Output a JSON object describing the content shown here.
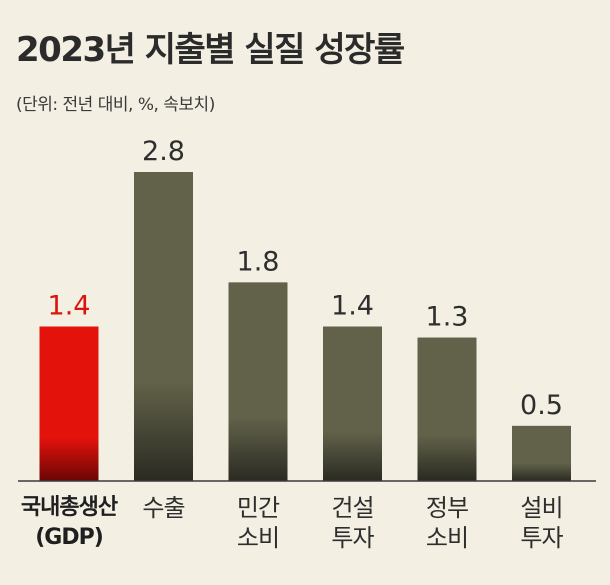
{
  "chart_data": {
    "type": "bar",
    "title": "2023년 지출별 실질 성장률",
    "subtitle": "(단위: 전년 대비, %, 속보치)",
    "categories": [
      {
        "line1": "국내총생산",
        "line2": "(GDP)"
      },
      {
        "line1": "수출",
        "line2": ""
      },
      {
        "line1": "민간",
        "line2": "소비"
      },
      {
        "line1": "건설",
        "line2": "투자"
      },
      {
        "line1": "정부",
        "line2": "소비"
      },
      {
        "line1": "설비",
        "line2": "투자"
      }
    ],
    "values": [
      1.4,
      2.8,
      1.8,
      1.4,
      1.3,
      0.5
    ],
    "value_labels": [
      "1.4",
      "2.8",
      "1.8",
      "1.4",
      "1.3",
      "0.5"
    ],
    "ylim": [
      0,
      2.8
    ],
    "highlight_index": 0,
    "colors": {
      "highlight": "#e3120b",
      "highlight_dark": "#6a0606",
      "bar": "#62624a",
      "bar_dark": "#2a2a22",
      "highlight_text": "#d9140c",
      "text": "#2e2e2e"
    }
  }
}
